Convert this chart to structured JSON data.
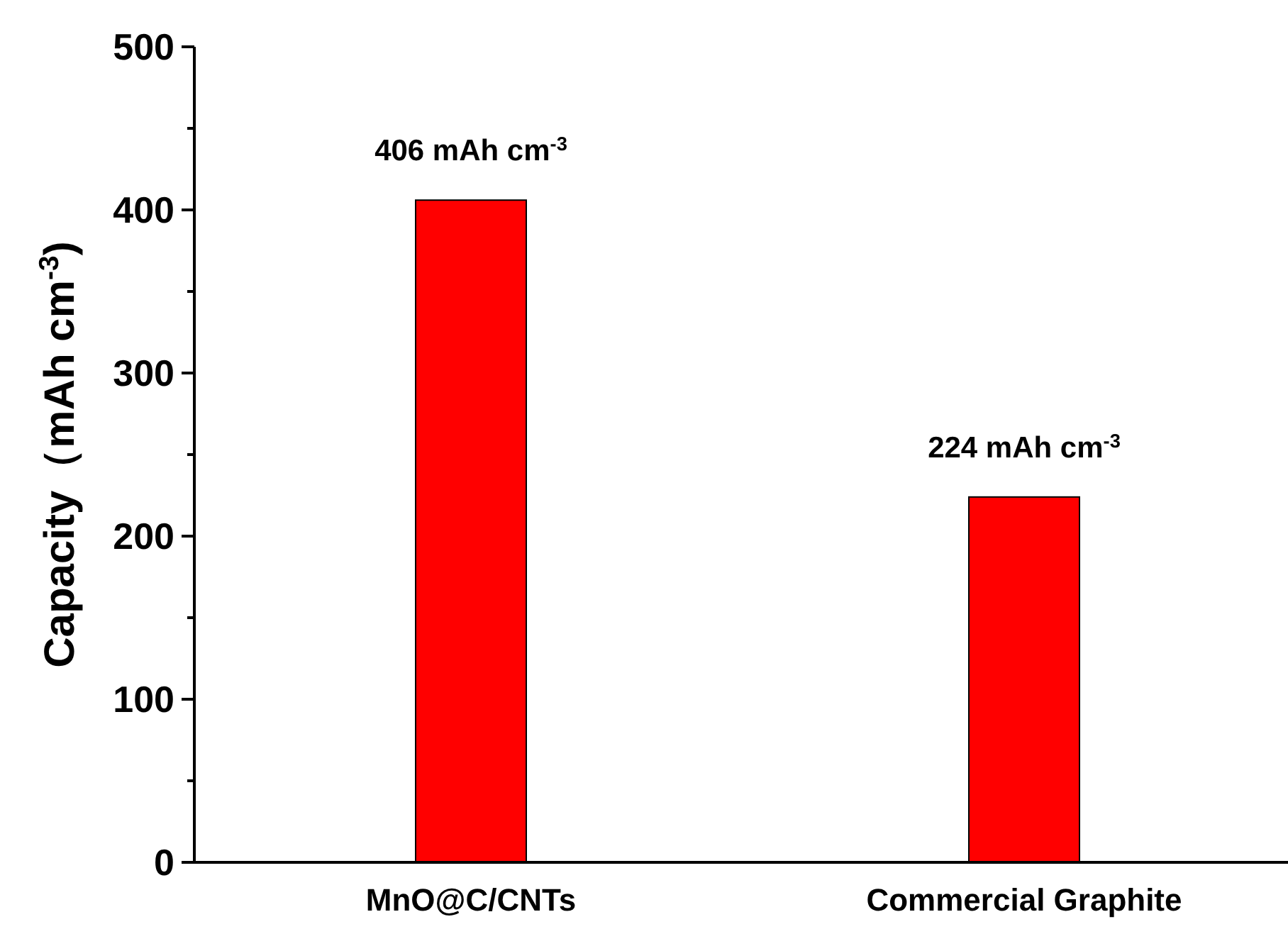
{
  "chart_data": {
    "type": "bar",
    "ylabel": "Capacity（mAh cm$^{-3}$)",
    "categories": [
      "MnO@C/CNTs",
      "Commercial Graphite"
    ],
    "values": [
      406,
      224
    ],
    "color": "#ff0000",
    "value_labels": [
      "406 mAh cm$^{-3}$",
      "224 mAh cm$^{-3}$"
    ],
    "ylim": [
      0,
      500
    ],
    "yticks": [
      0,
      {
        "value": 50,
        "label": null
      },
      100,
      {
        "value": 150,
        "label": null
      },
      200,
      {
        "value": 250,
        "label": null
      },
      300,
      {
        "value": 350,
        "label": null
      },
      400,
      {
        "value": 450,
        "label": null
      },
      500
    ],
    "grid": false
  }
}
